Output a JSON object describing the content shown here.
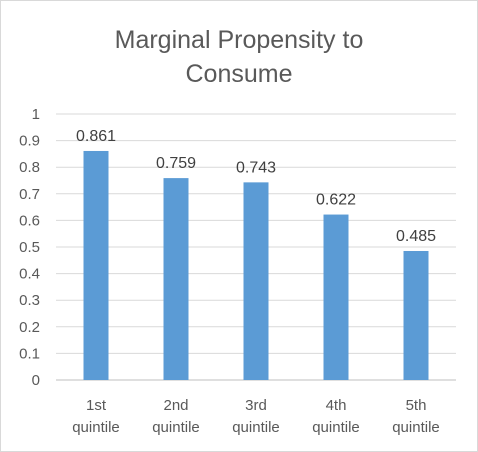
{
  "chart_data": {
    "type": "bar",
    "title_lines": [
      "Marginal Propensity to",
      "Consume"
    ],
    "categories": [
      [
        "1st",
        "quintile"
      ],
      [
        "2nd",
        "quintile"
      ],
      [
        "3rd",
        "quintile"
      ],
      [
        "4th",
        "quintile"
      ],
      [
        "5th",
        "quintile"
      ]
    ],
    "values": [
      0.861,
      0.759,
      0.743,
      0.622,
      0.485
    ],
    "data_labels": [
      "0.861",
      "0.759",
      "0.743",
      "0.622",
      "0.485"
    ],
    "ylim": [
      0,
      1
    ],
    "yticks": [
      0,
      0.1,
      0.2,
      0.3,
      0.4,
      0.5,
      0.6,
      0.7,
      0.8,
      0.9,
      1
    ],
    "ytick_labels": [
      "0",
      "0.1",
      "0.2",
      "0.3",
      "0.4",
      "0.5",
      "0.6",
      "0.7",
      "0.8",
      "0.9",
      "1"
    ],
    "xlabel": "",
    "ylabel": "",
    "grid": true,
    "legend": "none",
    "colors": {
      "bar": "#5b9bd5",
      "grid": "#d9d9d9",
      "text": "#595959"
    }
  }
}
